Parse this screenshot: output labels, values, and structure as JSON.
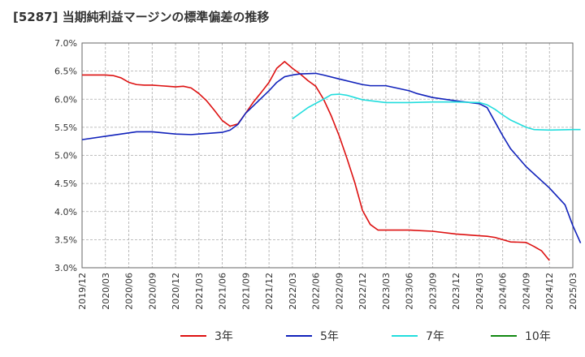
{
  "chart_data": {
    "type": "line",
    "title": "[5287]  当期純利益マージンの標準偏差の推移",
    "xlabel": "",
    "ylabel": "",
    "ylim": [
      3.0,
      7.0
    ],
    "xlim": [
      "2019/12",
      "2025/03"
    ],
    "y_ticks": [
      "3.0%",
      "3.5%",
      "4.0%",
      "4.5%",
      "5.0%",
      "5.5%",
      "6.0%",
      "6.5%",
      "7.0%"
    ],
    "x_ticks": [
      "2019/12",
      "2020/03",
      "2020/06",
      "2020/09",
      "2020/12",
      "2021/03",
      "2021/06",
      "2021/09",
      "2021/12",
      "2022/03",
      "2022/06",
      "2022/09",
      "2022/12",
      "2023/03",
      "2023/06",
      "2023/09",
      "2023/12",
      "2024/03",
      "2024/06",
      "2024/09",
      "2024/12",
      "2025/03"
    ],
    "grid": true,
    "legend_position": "bottom",
    "series": [
      {
        "name": "3年",
        "color": "#dd1111",
        "points": [
          [
            "2019/12",
            6.43
          ],
          [
            "2020/03",
            6.43
          ],
          [
            "2020/04",
            6.42
          ],
          [
            "2020/05",
            6.38
          ],
          [
            "2020/06",
            6.3
          ],
          [
            "2020/07",
            6.26
          ],
          [
            "2020/08",
            6.25
          ],
          [
            "2020/09",
            6.25
          ],
          [
            "2020/10",
            6.24
          ],
          [
            "2020/11",
            6.23
          ],
          [
            "2020/12",
            6.22
          ],
          [
            "2021/01",
            6.23
          ],
          [
            "2021/02",
            6.2
          ],
          [
            "2021/03",
            6.1
          ],
          [
            "2021/04",
            5.97
          ],
          [
            "2021/05",
            5.8
          ],
          [
            "2021/06",
            5.62
          ],
          [
            "2021/07",
            5.52
          ],
          [
            "2021/08",
            5.56
          ],
          [
            "2021/09",
            5.75
          ],
          [
            "2021/10",
            5.95
          ],
          [
            "2021/11",
            6.12
          ],
          [
            "2021/12",
            6.3
          ],
          [
            "2022/01",
            6.55
          ],
          [
            "2022/02",
            6.67
          ],
          [
            "2022/03",
            6.55
          ],
          [
            "2022/04",
            6.45
          ],
          [
            "2022/05",
            6.33
          ],
          [
            "2022/06",
            6.23
          ],
          [
            "2022/07",
            6.0
          ],
          [
            "2022/08",
            5.7
          ],
          [
            "2022/09",
            5.35
          ],
          [
            "2022/10",
            4.95
          ],
          [
            "2022/11",
            4.52
          ],
          [
            "2022/12",
            4.02
          ],
          [
            "2023/01",
            3.77
          ],
          [
            "2023/02",
            3.67
          ],
          [
            "2023/03",
            3.67
          ],
          [
            "2023/06",
            3.67
          ],
          [
            "2023/09",
            3.65
          ],
          [
            "2023/12",
            3.6
          ],
          [
            "2024/03",
            3.57
          ],
          [
            "2024/04",
            3.56
          ],
          [
            "2024/05",
            3.54
          ],
          [
            "2024/06",
            3.5
          ],
          [
            "2024/07",
            3.46
          ],
          [
            "2024/09",
            3.45
          ],
          [
            "2024/10",
            3.38
          ],
          [
            "2024/11",
            3.3
          ],
          [
            "2024/12",
            3.13
          ]
        ]
      },
      {
        "name": "5年",
        "color": "#1122bb",
        "points": [
          [
            "2019/12",
            5.28
          ],
          [
            "2020/03",
            5.34
          ],
          [
            "2020/06",
            5.4
          ],
          [
            "2020/07",
            5.42
          ],
          [
            "2020/09",
            5.42
          ],
          [
            "2020/12",
            5.38
          ],
          [
            "2021/02",
            5.37
          ],
          [
            "2021/03",
            5.38
          ],
          [
            "2021/06",
            5.41
          ],
          [
            "2021/07",
            5.45
          ],
          [
            "2021/08",
            5.55
          ],
          [
            "2021/09",
            5.75
          ],
          [
            "2021/12",
            6.15
          ],
          [
            "2022/01",
            6.3
          ],
          [
            "2022/02",
            6.4
          ],
          [
            "2022/03",
            6.43
          ],
          [
            "2022/04",
            6.45
          ],
          [
            "2022/06",
            6.46
          ],
          [
            "2022/07",
            6.43
          ],
          [
            "2022/09",
            6.36
          ],
          [
            "2022/12",
            6.26
          ],
          [
            "2023/01",
            6.24
          ],
          [
            "2023/03",
            6.24
          ],
          [
            "2023/06",
            6.15
          ],
          [
            "2023/07",
            6.1
          ],
          [
            "2023/09",
            6.03
          ],
          [
            "2023/12",
            5.97
          ],
          [
            "2024/03",
            5.92
          ],
          [
            "2024/04",
            5.85
          ],
          [
            "2024/05",
            5.6
          ],
          [
            "2024/06",
            5.35
          ],
          [
            "2024/07",
            5.12
          ],
          [
            "2024/09",
            4.8
          ],
          [
            "2024/12",
            4.42
          ],
          [
            "2025/02",
            4.12
          ],
          [
            "2025/03",
            3.75
          ],
          [
            "2025/04",
            3.44
          ]
        ]
      },
      {
        "name": "7年",
        "color": "#22dddd",
        "points": [
          [
            "2022/03",
            5.65
          ],
          [
            "2022/05",
            5.85
          ],
          [
            "2022/07",
            6.0
          ],
          [
            "2022/08",
            6.08
          ],
          [
            "2022/09",
            6.09
          ],
          [
            "2022/10",
            6.07
          ],
          [
            "2022/11",
            6.03
          ],
          [
            "2022/12",
            5.99
          ],
          [
            "2023/03",
            5.94
          ],
          [
            "2023/06",
            5.94
          ],
          [
            "2023/09",
            5.95
          ],
          [
            "2023/12",
            5.95
          ],
          [
            "2024/03",
            5.94
          ],
          [
            "2024/04",
            5.9
          ],
          [
            "2024/05",
            5.82
          ],
          [
            "2024/06",
            5.72
          ],
          [
            "2024/07",
            5.63
          ],
          [
            "2024/09",
            5.5
          ],
          [
            "2024/10",
            5.46
          ],
          [
            "2024/12",
            5.45
          ],
          [
            "2025/03",
            5.46
          ],
          [
            "2025/04",
            5.46
          ]
        ]
      },
      {
        "name": "10年",
        "color": "#118811",
        "points": []
      }
    ]
  }
}
